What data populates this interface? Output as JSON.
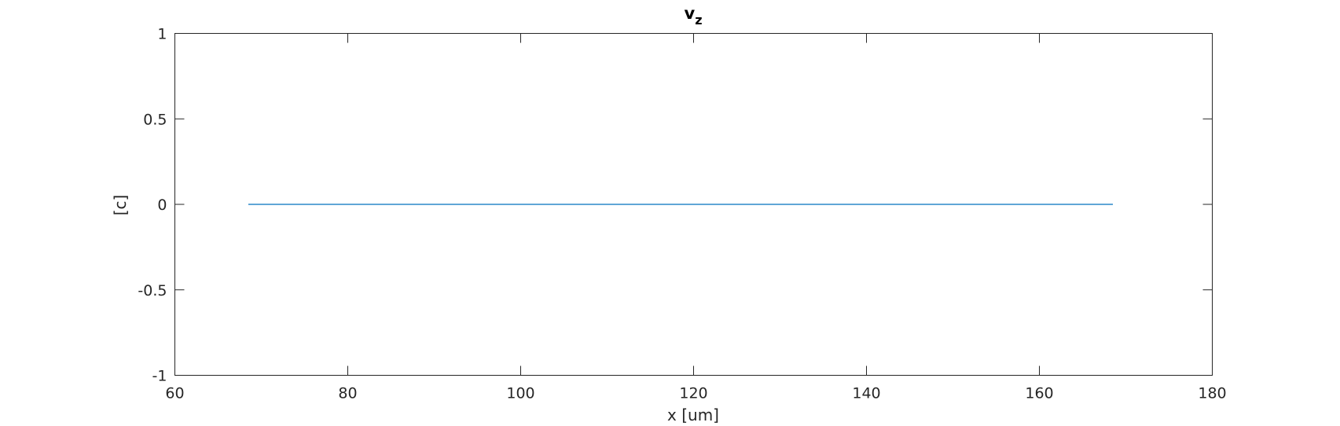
{
  "chart_data": {
    "type": "line",
    "title": "v",
    "title_subscript": "z",
    "xlabel": "x [um]",
    "ylabel": "[c]",
    "xlim": [
      60,
      180
    ],
    "ylim": [
      -1,
      1
    ],
    "xticks": [
      60,
      80,
      100,
      120,
      140,
      160,
      180
    ],
    "yticks": [
      -1,
      -0.5,
      0,
      0.5,
      1
    ],
    "xtick_labels": [
      "60",
      "80",
      "100",
      "120",
      "140",
      "160",
      "180"
    ],
    "ytick_labels": [
      "-1",
      "-0.5",
      "0",
      "0.5",
      "1"
    ],
    "grid": false,
    "series": [
      {
        "color": "#0072bd",
        "x": [
          68.5,
          168.5
        ],
        "y": [
          0,
          0
        ]
      }
    ]
  }
}
